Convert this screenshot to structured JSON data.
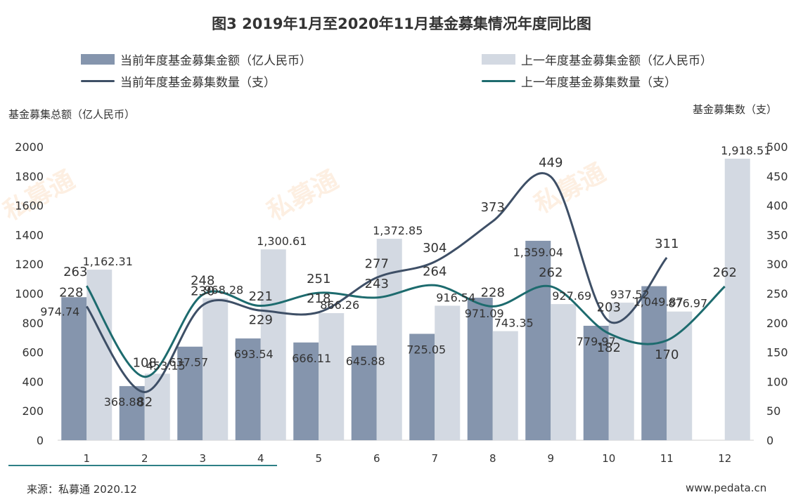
{
  "chart_data": {
    "type": "bar",
    "title": "图3  2019年1月至2020年11月基金募集情况年度同比图",
    "categories": [
      "1",
      "2",
      "3",
      "4",
      "5",
      "6",
      "7",
      "8",
      "9",
      "10",
      "11",
      "12"
    ],
    "series": [
      {
        "name": "当前年度基金募集金额（亿人民币）",
        "kind": "bar",
        "axis": "left",
        "values": [
          974.74,
          368.88,
          637.57,
          693.54,
          666.11,
          645.88,
          725.05,
          971.09,
          1359.04,
          779.97,
          1049.87,
          null
        ],
        "labels": [
          "974.74",
          "368.88",
          "637.57",
          "693.54",
          "666.11",
          "645.88",
          "725.05",
          "971.09",
          "1,359.04",
          "779.97",
          "1,049.87",
          ""
        ]
      },
      {
        "name": "上一年度基金募集金额（亿人民币）",
        "kind": "bar",
        "axis": "left",
        "values": [
          1162.31,
          453.15,
          968.28,
          1300.61,
          866.26,
          1372.85,
          916.54,
          743.35,
          927.69,
          937.52,
          876.97,
          1918.51
        ],
        "labels": [
          "1,162.31",
          "453.15",
          "968.28",
          "1,300.61",
          "866.26",
          "1,372.85",
          "916.54",
          "743.35",
          "927.69",
          "937.52",
          "876.97",
          "1,918.51"
        ]
      },
      {
        "name": "当前年度基金募集数量（支）",
        "kind": "line",
        "axis": "right",
        "values": [
          228,
          82,
          230,
          221,
          218,
          277,
          304,
          373,
          449,
          203,
          311,
          null
        ],
        "labels": [
          "228",
          "82",
          "230",
          "221",
          "218",
          "277",
          "304",
          "373",
          "449",
          "203",
          "311",
          ""
        ]
      },
      {
        "name": "上一年度基金募集数量（支）",
        "kind": "line",
        "axis": "right",
        "values": [
          263,
          108,
          248,
          229,
          251,
          243,
          264,
          228,
          262,
          182,
          170,
          262
        ],
        "labels": [
          "263",
          "108",
          "248",
          "229",
          "251",
          "243",
          "264",
          "228",
          "262",
          "182",
          "170",
          "262"
        ]
      }
    ],
    "ylabel": "基金募集总额（亿人民币）",
    "y2label": "基金募集数（支）",
    "ylim": [
      0,
      2000
    ],
    "y2lim": [
      0,
      500
    ],
    "yticks": [
      "0",
      "200",
      "400",
      "600",
      "800",
      "1000",
      "1200",
      "1400",
      "1600",
      "1800",
      "2000"
    ],
    "y2ticks": [
      "0",
      "50",
      "100",
      "150",
      "200",
      "250",
      "300",
      "350",
      "400",
      "450",
      "500"
    ],
    "colors": {
      "bar_current": "#8595ad",
      "bar_prev": "#d3d9e2",
      "line_current": "#3e4f66",
      "line_prev": "#1d6b6e"
    }
  },
  "footer": {
    "source": "来源：私募通 2020.12",
    "website": "www.pedata.cn"
  },
  "watermark": {
    "text": "私募通"
  }
}
